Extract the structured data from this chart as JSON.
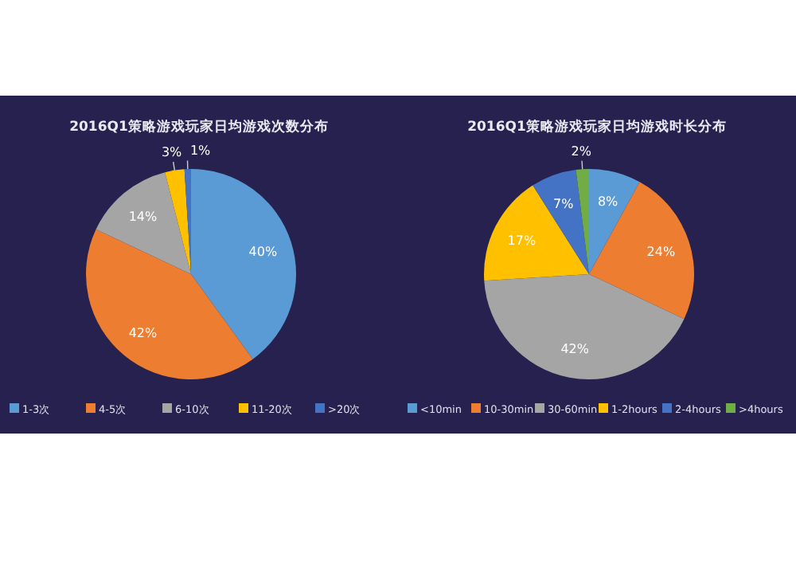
{
  "chart_data": [
    {
      "type": "pie",
      "title": "2016Q1策略游戏玩家日均游戏次数分布",
      "categories": [
        "1-3次",
        "4-5次",
        "6-10次",
        "11-20次",
        ">20次"
      ],
      "values": [
        40,
        42,
        14,
        3,
        1
      ],
      "colors": [
        "#5b9bd5",
        "#ed7d31",
        "#a5a5a5",
        "#ffc000",
        "#4472c4"
      ],
      "value_labels": [
        "40%",
        "42%",
        "14%",
        "3%",
        "1%"
      ],
      "legend": "bottom"
    },
    {
      "type": "pie",
      "title": "2016Q1策略游戏玩家日均游戏时长分布",
      "categories": [
        "<10min",
        "10-30min",
        "30-60min",
        "1-2hours",
        "2-4hours",
        ">4hours"
      ],
      "values": [
        8,
        24,
        42,
        17,
        7,
        2
      ],
      "colors": [
        "#5b9bd5",
        "#ed7d31",
        "#a5a5a5",
        "#ffc000",
        "#4472c4",
        "#70ad47"
      ],
      "value_labels": [
        "8%",
        "24%",
        "42%",
        "17%",
        "7%",
        "2%"
      ],
      "legend": "bottom"
    }
  ]
}
